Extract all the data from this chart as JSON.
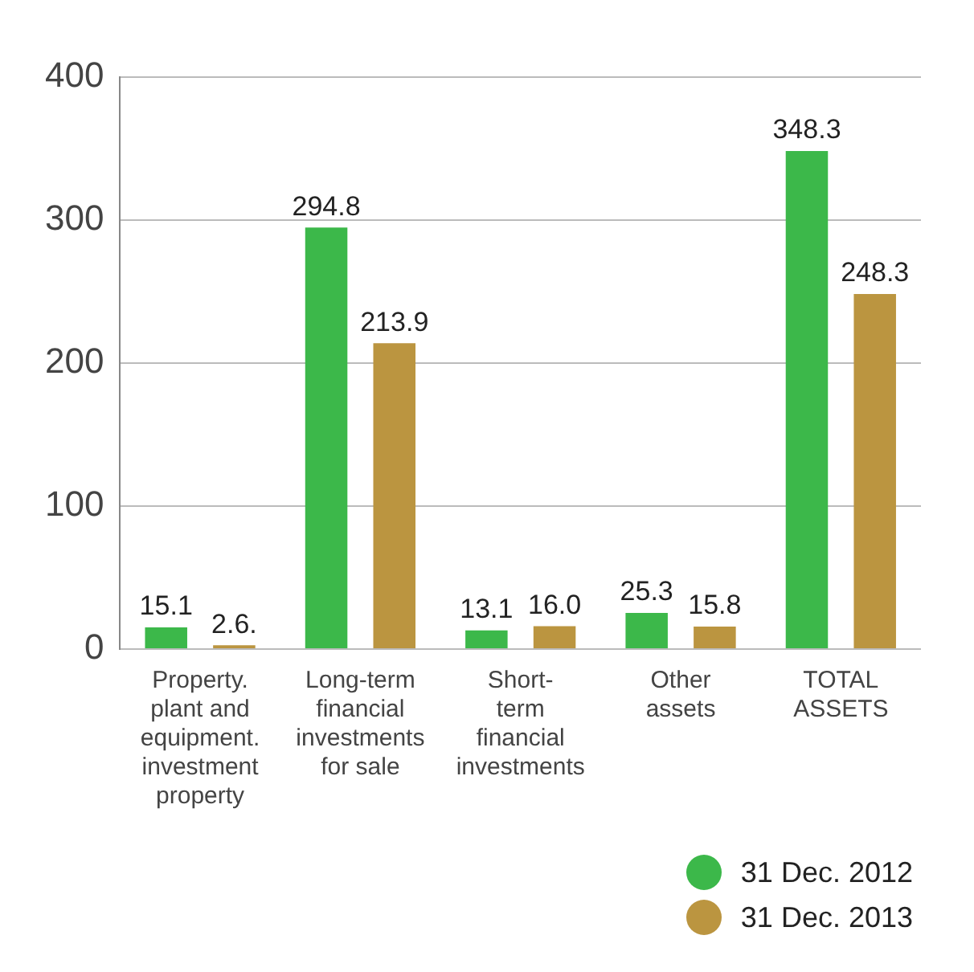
{
  "chart_data": {
    "type": "bar",
    "categories": [
      "Property.\nplant and\nequipment.\ninvestment\nproperty",
      "Long-term\nfinancial\ninvestments\nfor sale",
      "Short-\nterm\nfinancial\ninvestments",
      "Other\nassets",
      "TOTAL\nASSETS"
    ],
    "series": [
      {
        "name": "31 Dec. 2012",
        "color": "#3cb84a",
        "values": [
          15.1,
          294.8,
          13.1,
          25.3,
          348.3
        ],
        "value_labels": [
          "15.1",
          "294.8",
          "13.1",
          "25.3",
          "348.3"
        ]
      },
      {
        "name": "31 Dec. 2013",
        "color": "#bb9540",
        "values": [
          2.6,
          213.9,
          16.0,
          15.8,
          248.3
        ],
        "value_labels": [
          "2.6.",
          "213.9",
          "16.0",
          "15.8",
          "248.3"
        ]
      }
    ],
    "ylim": [
      0,
      400
    ],
    "yticks": [
      0,
      100,
      200,
      300,
      400
    ],
    "grid": "y",
    "legend": "bottom right"
  }
}
